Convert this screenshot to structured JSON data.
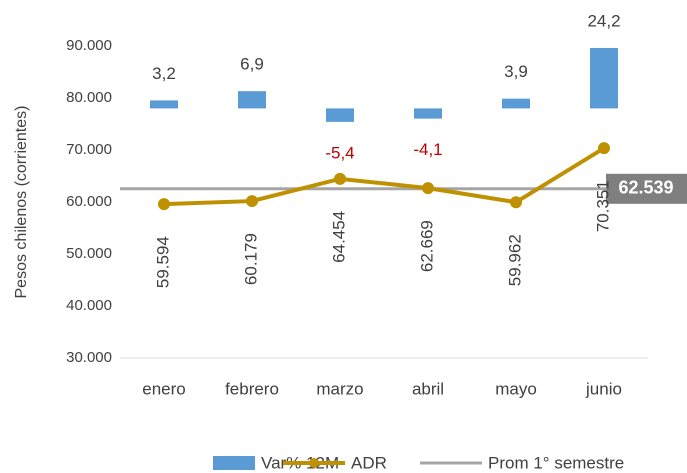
{
  "chart_data": {
    "type": "combo",
    "y_axis_label": "Pesos chilenos (corrientes)",
    "categories": [
      "enero",
      "febrero",
      "marzo",
      "abril",
      "mayo",
      "junio"
    ],
    "ylim": [
      30000,
      90000
    ],
    "yticks": [
      {
        "value": 30000,
        "label": "30.000"
      },
      {
        "value": 40000,
        "label": "40.000"
      },
      {
        "value": 50000,
        "label": "50.000"
      },
      {
        "value": 60000,
        "label": "60.000"
      },
      {
        "value": 70000,
        "label": "70.000"
      },
      {
        "value": 80000,
        "label": "80.000"
      },
      {
        "value": 90000,
        "label": "90.000"
      }
    ],
    "y2lim": [
      -100,
      25
    ],
    "series": [
      {
        "name": "Var% 12M",
        "type": "bar",
        "axis": "y2",
        "color": "#5b9bd5",
        "negative_label_color": "#c00000",
        "values": [
          3.2,
          6.9,
          -5.4,
          -4.1,
          3.9,
          24.2
        ],
        "value_labels": [
          "3,2",
          "6,9",
          "-5,4",
          "-4,1",
          "3,9",
          "24,2"
        ]
      },
      {
        "name": "ADR",
        "type": "line",
        "color": "#bf9000",
        "values": [
          59594,
          60179,
          64454,
          62669,
          59962,
          70351
        ],
        "value_labels": [
          "59.594",
          "60.179",
          "64.454",
          "62.669",
          "59.962",
          "70.351"
        ]
      },
      {
        "name": "Prom 1° semestre",
        "type": "hline",
        "color": "#a5a5a5",
        "label_box_color": "#7f7f7f",
        "value": 62539,
        "value_label": "62.539"
      }
    ]
  }
}
